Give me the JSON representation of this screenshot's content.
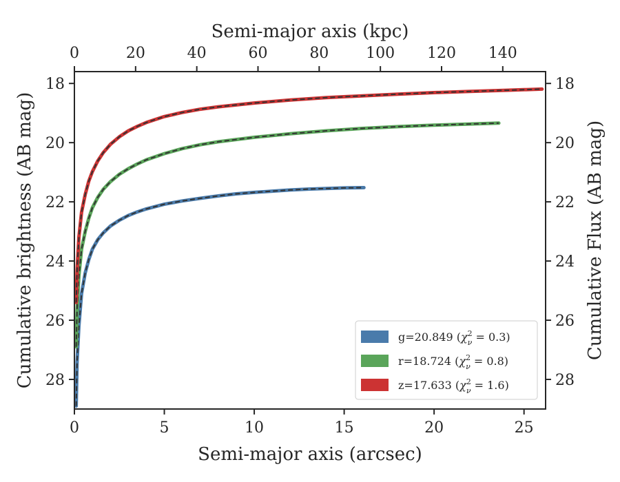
{
  "chart_data": {
    "type": "line",
    "xlabel_bottom": "Semi-major axis (arcsec)",
    "xlabel_top": "Semi-major axis (kpc)",
    "ylabel_left": "Cumulative brightness (AB mag)",
    "ylabel_right": "Cumulative Flux (AB mag)",
    "xlim": [
      0,
      26.2
    ],
    "ylim": [
      29.0,
      17.6
    ],
    "x_ticks": [
      0,
      5,
      10,
      15,
      20,
      25
    ],
    "x_tick_labels": [
      "0",
      "5",
      "10",
      "15",
      "20",
      "25"
    ],
    "y_ticks": [
      18,
      20,
      22,
      24,
      26,
      28
    ],
    "y_tick_labels": [
      "18",
      "20",
      "22",
      "24",
      "26",
      "28"
    ],
    "x_top_ticks_kpc": [
      0,
      20,
      40,
      60,
      80,
      100,
      120,
      140
    ],
    "x_top_tick_labels": [
      "0",
      "20",
      "40",
      "60",
      "80",
      "100",
      "120",
      "140"
    ],
    "x_top_lim_kpc": [
      0,
      154
    ],
    "grid": false,
    "legend_position": "lower-right",
    "model_line_color": "#333333",
    "series": [
      {
        "name": "g=20.849 (χ²ᵥ = 0.3)",
        "label_main": "g=20.849 ",
        "chi2": "0.3",
        "color": "#4a7bab",
        "x": [
          0.1,
          0.15,
          0.25,
          0.4,
          0.6,
          0.8,
          1.0,
          1.3,
          1.6,
          2.0,
          2.5,
          3.0,
          3.5,
          4.0,
          5.0,
          6.0,
          7.0,
          8.0,
          9.0,
          10.0,
          11.0,
          12.0,
          13.0,
          14.0,
          15.0,
          16.1
        ],
        "y": [
          28.9,
          27.4,
          26.2,
          25.1,
          24.4,
          23.95,
          23.6,
          23.28,
          23.05,
          22.82,
          22.62,
          22.46,
          22.34,
          22.24,
          22.08,
          21.97,
          21.88,
          21.8,
          21.73,
          21.68,
          21.64,
          21.6,
          21.57,
          21.55,
          21.53,
          21.52
        ]
      },
      {
        "name": "r=18.724 (χ²ᵥ = 0.8)",
        "label_main": "r=18.724 ",
        "chi2": "0.8",
        "color": "#5aa55a",
        "x": [
          0.1,
          0.15,
          0.25,
          0.4,
          0.6,
          0.8,
          1.0,
          1.3,
          1.6,
          2.0,
          2.5,
          3.0,
          3.5,
          4.0,
          5.0,
          6.0,
          7.0,
          8.0,
          10.0,
          12.0,
          14.0,
          16.0,
          18.0,
          20.0,
          22.0,
          23.6
        ],
        "y": [
          26.9,
          25.6,
          24.5,
          23.6,
          23.0,
          22.55,
          22.2,
          21.85,
          21.58,
          21.32,
          21.07,
          20.88,
          20.72,
          20.58,
          20.37,
          20.2,
          20.07,
          19.97,
          19.82,
          19.7,
          19.6,
          19.52,
          19.46,
          19.41,
          19.37,
          19.34
        ]
      },
      {
        "name": "z=17.633 (χ²ᵥ = 1.6)",
        "label_main": "z=17.633 ",
        "chi2": "1.6",
        "color": "#cc3333",
        "x": [
          0.1,
          0.15,
          0.25,
          0.4,
          0.6,
          0.8,
          1.0,
          1.3,
          1.6,
          2.0,
          2.5,
          3.0,
          3.5,
          4.0,
          5.0,
          6.0,
          7.0,
          8.0,
          10.0,
          12.0,
          14.0,
          16.0,
          18.0,
          20.0,
          22.0,
          24.0,
          26.0
        ],
        "y": [
          25.4,
          24.3,
          23.2,
          22.35,
          21.75,
          21.3,
          20.98,
          20.62,
          20.34,
          20.06,
          19.8,
          19.6,
          19.45,
          19.32,
          19.12,
          18.98,
          18.87,
          18.79,
          18.66,
          18.56,
          18.48,
          18.42,
          18.36,
          18.31,
          18.27,
          18.23,
          18.19
        ]
      }
    ]
  }
}
